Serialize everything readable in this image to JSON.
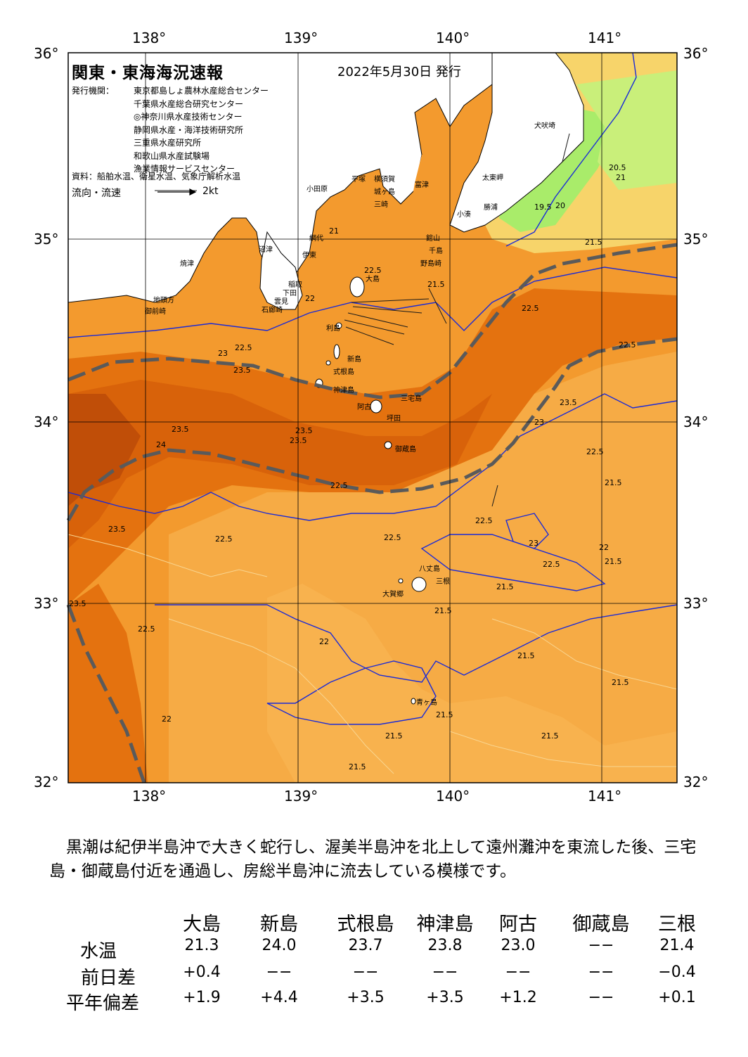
{
  "map": {
    "title": "関東・東海海況速報",
    "issue_date": "2022年5月30日 発行",
    "issuer_label": "発行機関：",
    "issuers": [
      "東京都島しょ農林水産総合センター",
      "千葉県水産総合研究センター",
      "◎神奈川県水産技術センター",
      "静岡県水産・海洋技術研究所",
      "三重県水産研究所",
      "和歌山県水産試験場",
      "漁業情報サービスセンター"
    ],
    "source": "資料：船舶水温、衛星水温、気象庁解析水温",
    "flow_label": "流向・流速",
    "flow_scale": "2kt",
    "lon_labels": [
      "138°",
      "139°",
      "140°",
      "141°"
    ],
    "lat_labels": [
      "36°",
      "35°",
      "34°",
      "33°",
      "32°"
    ],
    "places": [
      {
        "name": "犬吠埼"
      },
      {
        "name": "太東岬"
      },
      {
        "name": "小湊"
      },
      {
        "name": "勝浦"
      },
      {
        "name": "富津"
      },
      {
        "name": "館山"
      },
      {
        "name": "千島"
      },
      {
        "name": "野島崎"
      },
      {
        "name": "平塚"
      },
      {
        "name": "横須賀"
      },
      {
        "name": "城ヶ島"
      },
      {
        "name": "三崎"
      },
      {
        "name": "小田原"
      },
      {
        "name": "網代"
      },
      {
        "name": "伊東"
      },
      {
        "name": "沼津"
      },
      {
        "name": "焼津"
      },
      {
        "name": "御前崎"
      },
      {
        "name": "地頭方"
      },
      {
        "name": "下田"
      },
      {
        "name": "稲取"
      },
      {
        "name": "石廊崎"
      },
      {
        "name": "雲見"
      },
      {
        "name": "大島"
      },
      {
        "name": "利島"
      },
      {
        "name": "新島"
      },
      {
        "name": "式根島"
      },
      {
        "name": "神津島"
      },
      {
        "name": "三宅島"
      },
      {
        "name": "阿古"
      },
      {
        "name": "坪田"
      },
      {
        "name": "御蔵島"
      },
      {
        "name": "八丈島"
      },
      {
        "name": "三根"
      },
      {
        "name": "大賀郷"
      },
      {
        "name": "青ヶ島"
      }
    ],
    "contour_labels": [
      "19.5",
      "20",
      "20.5",
      "21",
      "21.5",
      "22",
      "22.5",
      "23",
      "23.5",
      "24"
    ],
    "colors": {
      "ocean_warm": "#e06a0a",
      "ocean_core": "#c9540a",
      "ocean_mid": "#f08a1e",
      "ocean_light": "#f6a640",
      "ocean_cool": "#f7c860",
      "cold_green": "#a6e86a",
      "cold_lime": "#d7f07a",
      "land": "#ffffff",
      "kuroshio_axis": "#555555",
      "contour_blue": "#1a2ad8"
    }
  },
  "summary": "黒潮は紀伊半島沖で大きく蛇行し、渥美半島沖を北上して遠州灘沖を東流した後、三宅島・御蔵島付近を通過し、房総半島沖に流去している模様です。",
  "table": {
    "columns": [
      "大島",
      "新島",
      "式根島",
      "神津島",
      "阿古",
      "御蔵島",
      "三根"
    ],
    "rows": [
      {
        "label": "水温",
        "values": [
          "21.3",
          "24.0",
          "23.7",
          "23.8",
          "23.0",
          "−−",
          "21.4"
        ]
      },
      {
        "label": "前日差",
        "values": [
          "+0.4",
          "−−",
          "−−",
          "−−",
          "−−",
          "−−",
          "−0.4"
        ]
      },
      {
        "label": "平年偏差",
        "values": [
          "+1.9",
          "+4.4",
          "+3.5",
          "+3.5",
          "+1.2",
          "−−",
          "+0.1"
        ]
      }
    ]
  }
}
